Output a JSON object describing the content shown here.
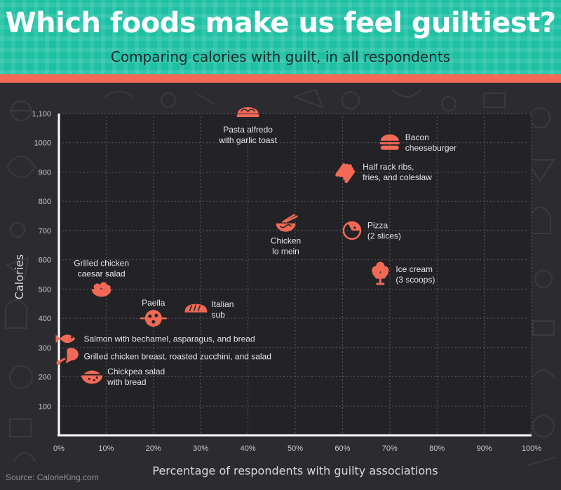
{
  "header": {
    "title": "Which foods make us feel guiltiest?",
    "subtitle": "Comparing calories with guilt, in all respondents"
  },
  "source": "Source: CalorieKing.com",
  "colors": {
    "header_bg": "#1ec0a4",
    "accent": "#f26a55",
    "background": "#2c2c30",
    "plot_bg": "#232327"
  },
  "chart_data": {
    "type": "scatter",
    "xlabel": "Percentage of respondents with guilty associations",
    "ylabel": "Calories",
    "xlim": [
      0,
      100
    ],
    "ylim": [
      0,
      1100
    ],
    "x_ticks": [
      "0%",
      "10%",
      "20%",
      "30%",
      "40%",
      "50%",
      "60%",
      "70%",
      "80%",
      "90%",
      "100%"
    ],
    "y_ticks": [
      "100",
      "200",
      "300",
      "400",
      "500",
      "600",
      "700",
      "800",
      "900",
      "1000",
      "1,100"
    ],
    "grid": true,
    "points": [
      {
        "label": "Pasta alfredo\nwith garlic toast",
        "x": 40,
        "y": 1100,
        "icon": "pasta-icon",
        "label_pos": "below"
      },
      {
        "label": "Bacon\ncheeseburger",
        "x": 70,
        "y": 1000,
        "icon": "burger-icon",
        "label_pos": "right"
      },
      {
        "label": "Half rack ribs,\nfries, and coleslaw",
        "x": 61,
        "y": 900,
        "icon": "ribs-icon",
        "label_pos": "right"
      },
      {
        "label": "Chicken\nlo mein",
        "x": 48,
        "y": 720,
        "icon": "noodles-icon",
        "label_pos": "below"
      },
      {
        "label": "Pizza\n(2 slices)",
        "x": 62,
        "y": 700,
        "icon": "pizza-icon",
        "label_pos": "right"
      },
      {
        "label": "Ice cream\n(3 scoops)",
        "x": 68,
        "y": 550,
        "icon": "ice-cream-icon",
        "label_pos": "right"
      },
      {
        "label": "Grilled chicken\ncaesar salad",
        "x": 9,
        "y": 500,
        "icon": "salad-icon",
        "label_pos": "above"
      },
      {
        "label": "Paella",
        "x": 20,
        "y": 400,
        "icon": "paella-icon",
        "label_pos": "above"
      },
      {
        "label": "Italian\nsub",
        "x": 29,
        "y": 430,
        "icon": "sandwich-icon",
        "label_pos": "right"
      },
      {
        "label": "Salmon with bechamel, asparagus, and bread",
        "x": 2,
        "y": 330,
        "icon": "fish-icon",
        "label_pos": "right"
      },
      {
        "label": "Grilled chicken breast, roasted zucchini, and salad",
        "x": 2,
        "y": 270,
        "icon": "chicken-icon",
        "label_pos": "right"
      },
      {
        "label": "Chickpea salad\nwith bread",
        "x": 7,
        "y": 200,
        "icon": "bowl-icon",
        "label_pos": "right"
      }
    ]
  }
}
